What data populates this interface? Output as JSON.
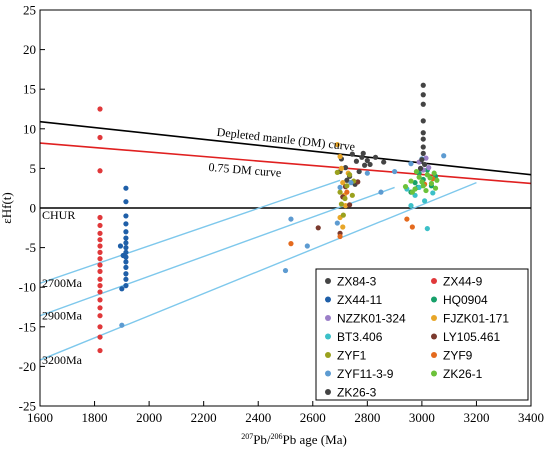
{
  "chart_data": {
    "type": "scatter",
    "title": "",
    "xlabel": {
      "sup1": "207",
      "mid1": "Pb/",
      "sup2": "206",
      "mid2": "Pb  age (Ma)"
    },
    "ylabel": "εHf(t)",
    "xlim": [
      1600,
      3400
    ],
    "ylim": [
      -25,
      25
    ],
    "xticks": [
      1600,
      1800,
      2000,
      2200,
      2400,
      2600,
      2800,
      3000,
      3200,
      3400
    ],
    "yticks": [
      -25,
      -20,
      -15,
      -10,
      -5,
      0,
      5,
      10,
      15,
      20,
      25
    ],
    "grid": false,
    "legend_position": "bottom-right",
    "lines": [
      {
        "label": "Depleted mantle (DM) curve",
        "color": "#000000",
        "from": [
          1600,
          10.9
        ],
        "to": [
          3400,
          4.2
        ]
      },
      {
        "label": "0.75 DM curve",
        "color": "#e02020",
        "from": [
          1600,
          8.2
        ],
        "to": [
          3400,
          3.1
        ]
      },
      {
        "label": "CHUR",
        "color": "#000000",
        "from": [
          1600,
          0
        ],
        "to": [
          3400,
          0
        ]
      },
      {
        "label": "2700Ma",
        "color": "#7ec8ec",
        "from": [
          1600,
          -9.5
        ],
        "to": [
          2700,
          3.5
        ]
      },
      {
        "label": "2900Ma",
        "color": "#7ec8ec",
        "from": [
          1600,
          -13.6
        ],
        "to": [
          2900,
          2.6
        ]
      },
      {
        "label": "3200Ma",
        "color": "#7ec8ec",
        "from": [
          1600,
          -19.2
        ],
        "to": [
          3200,
          3.2
        ]
      }
    ],
    "series": [
      {
        "name": "ZX84-3",
        "color": "#444444",
        "points": [
          [
            2705,
            6.2
          ],
          [
            2720,
            5.1
          ],
          [
            2735,
            4.0
          ],
          [
            2745,
            6.8
          ],
          [
            2760,
            5.9
          ],
          [
            2770,
            4.6
          ],
          [
            2780,
            6.4
          ],
          [
            2790,
            5.4
          ],
          [
            2800,
            6.0
          ],
          [
            2810,
            5.5
          ],
          [
            2830,
            6.4
          ],
          [
            2860,
            5.8
          ],
          [
            2700,
            4.6
          ],
          [
            2725,
            3.5
          ],
          [
            2755,
            3.0
          ],
          [
            2785,
            6.9
          ]
        ]
      },
      {
        "name": "ZX44-9",
        "color": "#e0383a",
        "points": [
          [
            1820,
            12.5
          ],
          [
            1820,
            8.9
          ],
          [
            1820,
            4.7
          ],
          [
            1820,
            -1.2
          ],
          [
            1820,
            -2.2
          ],
          [
            1820,
            -3.2
          ],
          [
            1820,
            -4.0
          ],
          [
            1820,
            -4.8
          ],
          [
            1820,
            -5.6
          ],
          [
            1820,
            -6.4
          ],
          [
            1820,
            -7.2
          ],
          [
            1820,
            -8.0
          ],
          [
            1820,
            -9.0
          ],
          [
            1820,
            -9.8
          ],
          [
            1820,
            -10.6
          ],
          [
            1820,
            -11.6
          ],
          [
            1820,
            -12.6
          ],
          [
            1820,
            -13.6
          ],
          [
            1820,
            -15.0
          ],
          [
            1820,
            -16.3
          ],
          [
            1820,
            -18.0
          ]
        ]
      },
      {
        "name": "ZX44-11",
        "color": "#1f5fa8",
        "points": [
          [
            1915,
            2.5
          ],
          [
            1915,
            0.8
          ],
          [
            1915,
            -1.0
          ],
          [
            1915,
            -2.0
          ],
          [
            1915,
            -3.0
          ],
          [
            1915,
            -3.8
          ],
          [
            1915,
            -4.4
          ],
          [
            1915,
            -5.0
          ],
          [
            1915,
            -5.6
          ],
          [
            1915,
            -6.2
          ],
          [
            1915,
            -6.8
          ],
          [
            1915,
            -7.5
          ],
          [
            1915,
            -8.3
          ],
          [
            1915,
            -9.0
          ],
          [
            1915,
            -9.8
          ],
          [
            1895,
            -4.8
          ],
          [
            1900,
            -10.2
          ],
          [
            1905,
            -6.0
          ]
        ]
      },
      {
        "name": "HQ0904",
        "color": "#17a06a",
        "points": [
          [
            2960,
            2.0
          ],
          [
            2975,
            3.2
          ],
          [
            2990,
            4.4
          ],
          [
            3005,
            3.6
          ],
          [
            3020,
            4.8
          ],
          [
            3035,
            2.8
          ],
          [
            3050,
            4.0
          ],
          [
            2985,
            2.6
          ]
        ]
      },
      {
        "name": "NZZK01-324",
        "color": "#9b7fc8",
        "points": [
          [
            2990,
            5.8
          ],
          [
            3005,
            4.8
          ],
          [
            3015,
            6.3
          ],
          [
            3025,
            5.1
          ]
        ]
      },
      {
        "name": "FJZK01-171",
        "color": "#e8a628",
        "points": [
          [
            2690,
            8.0
          ],
          [
            2700,
            6.5
          ],
          [
            2705,
            5.0
          ],
          [
            2710,
            3.2
          ],
          [
            2715,
            1.6
          ],
          [
            2720,
            0.3
          ],
          [
            2700,
            -1.2
          ],
          [
            2710,
            -2.4
          ],
          [
            2730,
            4.4
          ]
        ]
      },
      {
        "name": "BT3.406",
        "color": "#3cc0c8",
        "points": [
          [
            2960,
            0.3
          ],
          [
            2975,
            1.6
          ],
          [
            2990,
            2.6
          ],
          [
            3010,
            0.9
          ],
          [
            3020,
            -2.6
          ],
          [
            3040,
            1.9
          ],
          [
            2945,
            2.4
          ]
        ]
      },
      {
        "name": "LY105.461",
        "color": "#7b3a2e",
        "points": [
          [
            2620,
            -2.5
          ],
          [
            2700,
            -3.2
          ],
          [
            2710,
            1.4
          ],
          [
            2720,
            2.7
          ],
          [
            2735,
            0.4
          ],
          [
            2765,
            3.3
          ]
        ]
      },
      {
        "name": "ZYF1",
        "color": "#9aa11e",
        "points": [
          [
            2690,
            4.5
          ],
          [
            2700,
            2.0
          ],
          [
            2705,
            0.5
          ],
          [
            2712,
            -0.9
          ],
          [
            2718,
            1.2
          ],
          [
            2725,
            2.8
          ],
          [
            2735,
            4.2
          ],
          [
            2745,
            1.6
          ],
          [
            2750,
            3.4
          ]
        ]
      },
      {
        "name": "ZYF9",
        "color": "#e46a1e",
        "points": [
          [
            2520,
            -4.5
          ],
          [
            2700,
            -3.6
          ],
          [
            2725,
            2.0
          ],
          [
            2945,
            -1.4
          ],
          [
            2965,
            -2.4
          ],
          [
            3010,
            3.0
          ],
          [
            3040,
            3.7
          ]
        ]
      },
      {
        "name": "ZYF11-3-9",
        "color": "#5d9bd1",
        "points": [
          [
            2500,
            -7.9
          ],
          [
            2520,
            -1.4
          ],
          [
            2580,
            -4.8
          ],
          [
            2690,
            -1.9
          ],
          [
            2700,
            2.6
          ],
          [
            2740,
            3.2
          ],
          [
            2800,
            4.4
          ],
          [
            2850,
            2.0
          ],
          [
            2900,
            4.6
          ],
          [
            2960,
            5.6
          ],
          [
            3000,
            6.2
          ],
          [
            3080,
            6.6
          ],
          [
            1900,
            -14.8
          ]
        ]
      },
      {
        "name": "ZK26-1",
        "color": "#6cc23a",
        "points": [
          [
            2940,
            2.7
          ],
          [
            2960,
            3.4
          ],
          [
            2975,
            2.4
          ],
          [
            2990,
            3.9
          ],
          [
            3005,
            2.8
          ],
          [
            3020,
            4.2
          ],
          [
            3035,
            3.1
          ],
          [
            3050,
            2.5
          ],
          [
            2980,
            4.6
          ],
          [
            3000,
            3.3
          ],
          [
            3015,
            2.2
          ],
          [
            3030,
            3.8
          ],
          [
            3045,
            4.4
          ],
          [
            2965,
            2.0
          ],
          [
            3055,
            3.5
          ]
        ]
      },
      {
        "name": "ZK26-3",
        "color": "#444444",
        "points": [
          [
            3005,
            15.5
          ],
          [
            3005,
            14.3
          ],
          [
            3005,
            13.1
          ],
          [
            3005,
            11.0
          ],
          [
            3005,
            9.5
          ],
          [
            3005,
            8.7
          ],
          [
            3005,
            7.7
          ],
          [
            3005,
            6.9
          ],
          [
            3000,
            6.1
          ],
          [
            3010,
            5.5
          ],
          [
            2995,
            5.0
          ]
        ]
      }
    ]
  }
}
